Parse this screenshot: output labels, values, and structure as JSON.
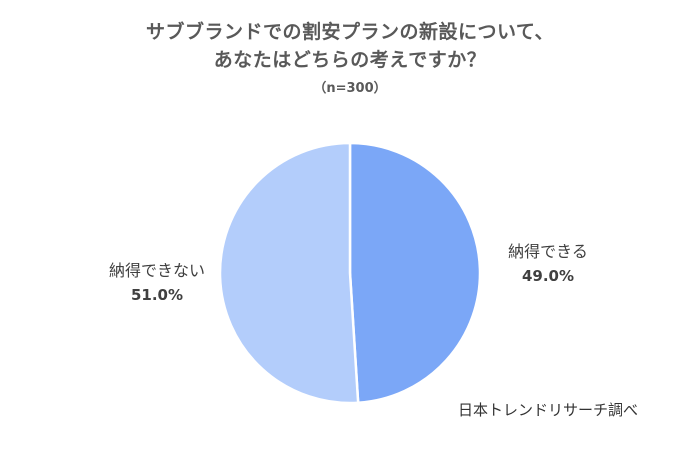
{
  "chart_data": {
    "type": "pie",
    "title_lines": [
      "サブブランドでの割安プランの新設について、",
      "あなたはどちらの考えですか？"
    ],
    "subtitle": "（n=300）",
    "slices": [
      {
        "label": "納得できる",
        "value": 49.0,
        "value_label": "49.0%",
        "color": "#7BA7F7"
      },
      {
        "label": "納得できない",
        "value": 51.0,
        "value_label": "51.0%",
        "color": "#B3CDFB"
      }
    ],
    "start_angle_deg": 0,
    "direction": "clockwise",
    "slice_border_color": "#FFFFFF",
    "legend": "none",
    "source_note": "日本トレンドリサーチ調べ"
  }
}
